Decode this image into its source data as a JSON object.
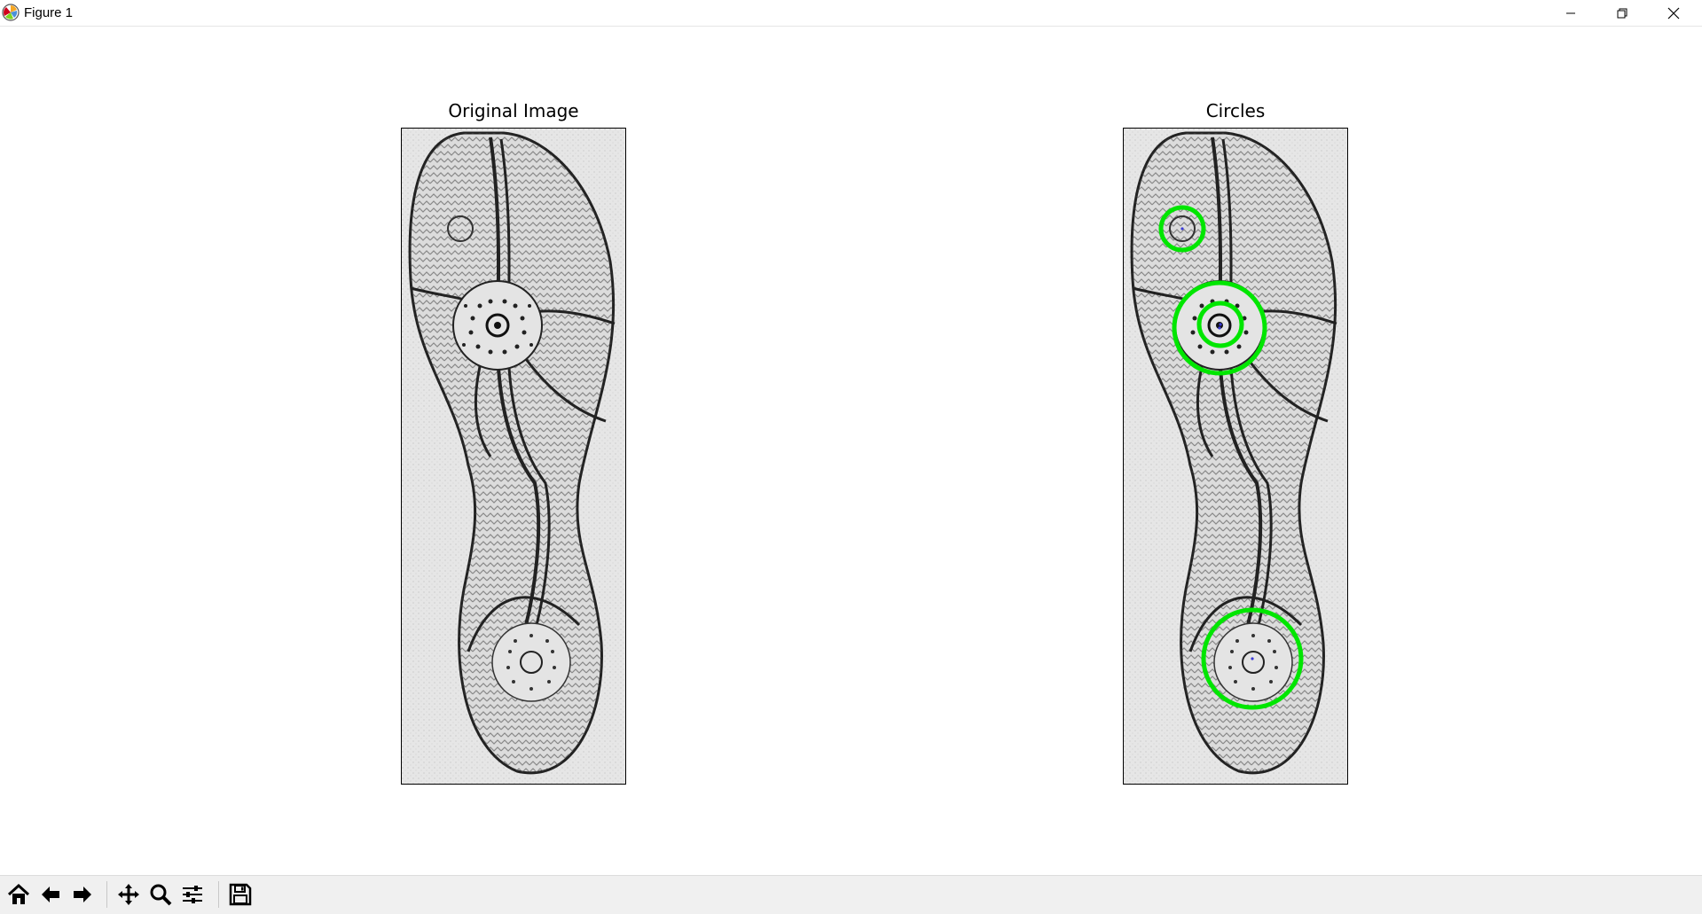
{
  "window": {
    "title": "Figure 1",
    "controls": [
      "minimize",
      "restore",
      "close"
    ]
  },
  "figure": {
    "left_axes": {
      "title": "Original Image"
    },
    "right_axes": {
      "title": "Circles",
      "detected_circles_color": "#00e600",
      "center_marker_color": "#3b3bd6"
    }
  },
  "toolbar": {
    "buttons": [
      "home-icon",
      "back-arrow-icon",
      "forward-arrow-icon",
      "pan-icon",
      "zoom-icon",
      "configure-subplots-icon",
      "save-icon"
    ]
  },
  "colors": {
    "axes_frame": "#000000",
    "image_background": "#e9e9e9",
    "toolbar_background": "#f0f0f0"
  }
}
